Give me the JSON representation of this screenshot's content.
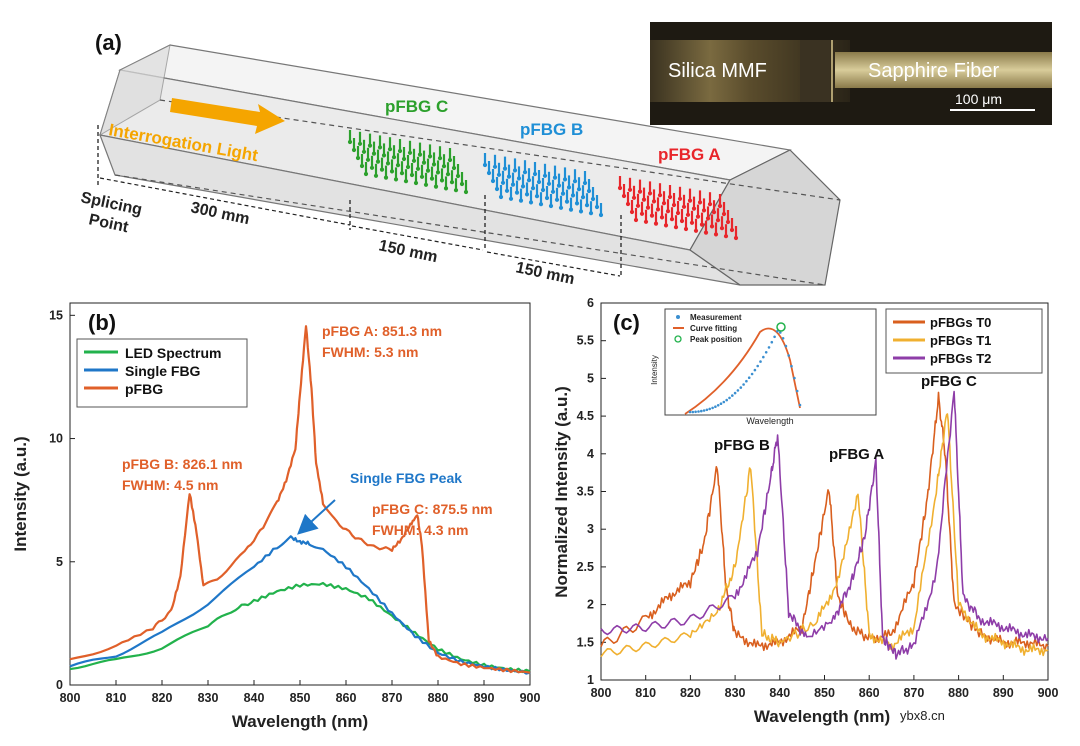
{
  "panel_a": {
    "label": "(a)",
    "light_label": "Interrogation Light",
    "splice_label": [
      "Splicing",
      "Point"
    ],
    "gratings": [
      {
        "name": "pFBG C",
        "color": "#2ca02c"
      },
      {
        "name": "pFBG B",
        "color": "#1f8fd6"
      },
      {
        "name": "pFBG A",
        "color": "#e8262b"
      }
    ],
    "distances": [
      "300 mm",
      "150 mm",
      "150 mm"
    ],
    "micro": {
      "left": "Silica MMF",
      "right": "Sapphire Fiber",
      "scale": "100 μm"
    }
  },
  "chart_data": [
    {
      "type": "line",
      "panel_label": "(b)",
      "xlabel": "Wavelength (nm)",
      "ylabel": "Intensity (a.u.)",
      "xlim": [
        800,
        900
      ],
      "ylim": [
        0,
        15.5
      ],
      "xticks": [
        800,
        810,
        820,
        830,
        840,
        850,
        860,
        870,
        880,
        890,
        900
      ],
      "yticks": [
        0,
        5,
        10,
        15
      ],
      "legend_position": "top-left",
      "series": [
        {
          "name": "LED Spectrum",
          "color": "#22b24c",
          "x": [
            800,
            810,
            820,
            830,
            836,
            840,
            845,
            850,
            855,
            860,
            865,
            870,
            875,
            880,
            885,
            890,
            895,
            900
          ],
          "y": [
            0.7,
            1.0,
            1.5,
            2.4,
            3.1,
            3.4,
            3.8,
            4.05,
            4.1,
            3.9,
            3.5,
            2.8,
            2.1,
            1.45,
            1.05,
            0.8,
            0.65,
            0.55
          ]
        },
        {
          "name": "Single FBG",
          "color": "#1f77c8",
          "x": [
            800,
            810,
            820,
            830,
            840,
            845,
            848,
            850,
            852,
            855,
            860,
            865,
            870,
            875,
            880,
            885,
            890,
            895,
            900
          ],
          "y": [
            0.75,
            1.2,
            2.1,
            3.3,
            4.8,
            5.6,
            6.0,
            5.8,
            5.75,
            5.5,
            4.8,
            3.9,
            2.9,
            2.0,
            1.3,
            0.95,
            0.75,
            0.6,
            0.5
          ]
        },
        {
          "name": "pFBG",
          "color": "#e0602a",
          "x": [
            800,
            810,
            818,
            822,
            824,
            826,
            827.5,
            829,
            832,
            838,
            842,
            845,
            847,
            849,
            850,
            851.3,
            852.5,
            853.5,
            855,
            858,
            862,
            866,
            870,
            872,
            874,
            875.5,
            876.5,
            878,
            880,
            885,
            890,
            895,
            900
          ],
          "y": [
            1.0,
            1.6,
            2.3,
            3.0,
            4.4,
            7.8,
            6.2,
            4.0,
            4.3,
            5.4,
            6.4,
            7.4,
            8.3,
            9.6,
            11.8,
            14.6,
            12.0,
            9.0,
            7.4,
            6.6,
            6.0,
            5.6,
            5.5,
            5.9,
            6.5,
            6.9,
            5.7,
            1.8,
            1.15,
            0.85,
            0.7,
            0.6,
            0.5
          ]
        }
      ],
      "annotations": [
        {
          "lines": [
            "pFBG A: 851.3 nm",
            "FWHM: 5.3 nm"
          ],
          "color": "#e0602a"
        },
        {
          "lines": [
            "pFBG B: 826.1 nm",
            "FWHM: 4.5 nm"
          ],
          "color": "#e0602a"
        },
        {
          "lines": [
            "pFBG C: 875.5 nm",
            "FWHM: 4.3 nm"
          ],
          "color": "#e0602a"
        },
        {
          "lines": [
            "Single FBG Peak"
          ],
          "color": "#1f77c8"
        }
      ]
    },
    {
      "type": "line",
      "panel_label": "(c)",
      "xlabel": "Wavelength (nm)",
      "ylabel": "Normalized Intensity (a.u.)",
      "xlim": [
        800,
        900
      ],
      "ylim": [
        1,
        6
      ],
      "xticks": [
        800,
        810,
        820,
        830,
        840,
        850,
        860,
        870,
        880,
        890,
        900
      ],
      "yticks": [
        1,
        1.5,
        2,
        2.5,
        3,
        3.5,
        4,
        4.5,
        5,
        5.5,
        6
      ],
      "legend_position": "top-right",
      "series": [
        {
          "name": "pFBGs T0",
          "color": "#d95f1e",
          "x": [
            800,
            810,
            815,
            820,
            823,
            826,
            828,
            830,
            835,
            840,
            845,
            848,
            851,
            853,
            856,
            860,
            865,
            870,
            873,
            875.5,
            877,
            879,
            885,
            890,
            895,
            900
          ],
          "y": [
            1.45,
            1.8,
            2.1,
            2.3,
            2.8,
            3.85,
            2.2,
            1.6,
            1.45,
            1.5,
            1.7,
            2.6,
            3.55,
            2.1,
            1.7,
            1.55,
            1.6,
            2.3,
            3.4,
            4.75,
            4.0,
            2.0,
            1.6,
            1.5,
            1.5,
            1.45
          ]
        },
        {
          "name": "pFBGs T1",
          "color": "#f0b030",
          "x": [
            800,
            810,
            820,
            826,
            830,
            833.5,
            836,
            840,
            848,
            853,
            857.5,
            860,
            865,
            870,
            875,
            877.5,
            880,
            885,
            890,
            895,
            900
          ],
          "y": [
            1.35,
            1.45,
            1.6,
            1.9,
            2.5,
            3.85,
            1.6,
            1.5,
            1.75,
            2.3,
            3.5,
            1.6,
            1.45,
            1.7,
            3.5,
            4.6,
            2.0,
            1.6,
            1.5,
            1.4,
            1.4
          ]
        },
        {
          "name": "pFBGs T2",
          "color": "#8e3da8",
          "x": [
            800,
            810,
            820,
            830,
            835,
            838,
            839.5,
            842,
            846,
            852,
            856,
            859,
            861.5,
            863,
            866,
            870,
            875,
            879,
            881,
            885,
            890,
            895,
            900
          ],
          "y": [
            1.65,
            1.7,
            1.8,
            2.1,
            2.7,
            3.7,
            4.25,
            1.9,
            1.55,
            1.8,
            2.3,
            2.9,
            3.9,
            1.55,
            1.35,
            1.45,
            2.4,
            4.85,
            2.1,
            1.8,
            1.7,
            1.6,
            1.55
          ]
        }
      ],
      "peak_labels": [
        "pFBG B",
        "pFBG A",
        "pFBG C"
      ],
      "inset": {
        "xlabel": "Wavelength",
        "ylabel": "Intensity",
        "legend": [
          {
            "name": "Measurement",
            "color": "#3b8fd0"
          },
          {
            "name": "Curve fitting",
            "color": "#e0602a"
          },
          {
            "name": "Peak position",
            "color": "#22b24c"
          }
        ]
      }
    }
  ],
  "watermark": "ybx8.cn"
}
